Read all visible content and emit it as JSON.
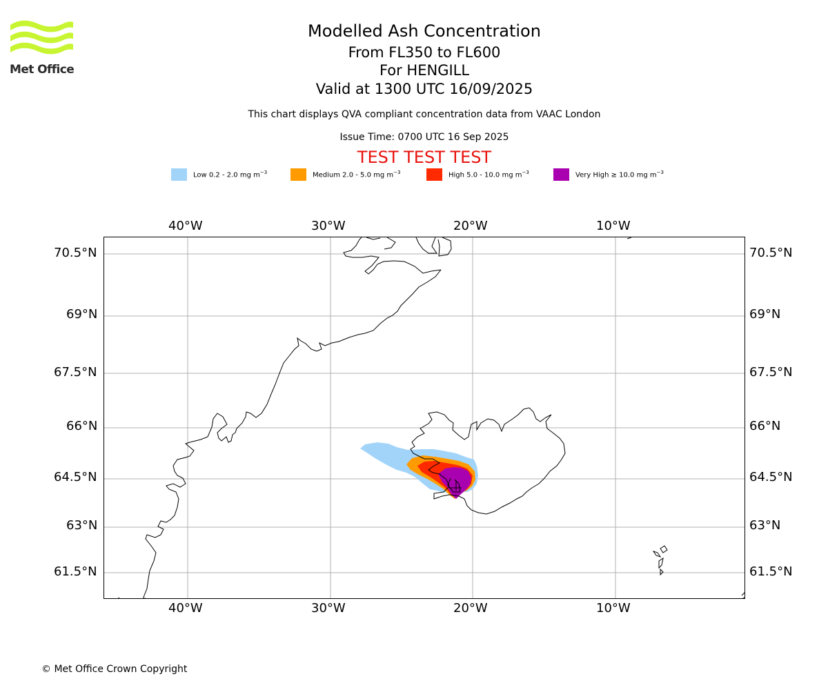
{
  "brand": {
    "name": "Met Office"
  },
  "header": {
    "title": "Modelled Ash Concentration",
    "levels": "From FL350 to FL600",
    "volcano": "For HENGILL",
    "valid": "Valid at 1300 UTC 16/09/2025",
    "description": "This chart displays QVA compliant concentration data from VAAC London",
    "issue_time": "Issue Time: 0700 UTC 16 Sep 2025",
    "test_banner": "TEST TEST TEST"
  },
  "legend": [
    {
      "label": "Low 0.2 - 2.0 mg m",
      "color": "#a2d4fa"
    },
    {
      "label": "Medium 2.0 - 5.0 mg m",
      "color": "#ff9b00"
    },
    {
      "label": "High 5.0 - 10.0 mg m",
      "color": "#ff2a00"
    },
    {
      "label": "Very High ≥ 10.0 mg m",
      "color": "#a900b0"
    }
  ],
  "legend_unit_exponent": "−3",
  "map": {
    "longitude_ticks": [
      "40°W",
      "30°W",
      "20°W",
      "10°W"
    ],
    "latitude_ticks": [
      "70.5°N",
      "69°N",
      "67.5°N",
      "66°N",
      "64.5°N",
      "63°N",
      "61.5°N"
    ],
    "gridlines": true,
    "coastline_color": "#000000",
    "grid_color": "#b0b0b0"
  },
  "footer": {
    "copyright": "© Met Office Crown Copyright"
  }
}
